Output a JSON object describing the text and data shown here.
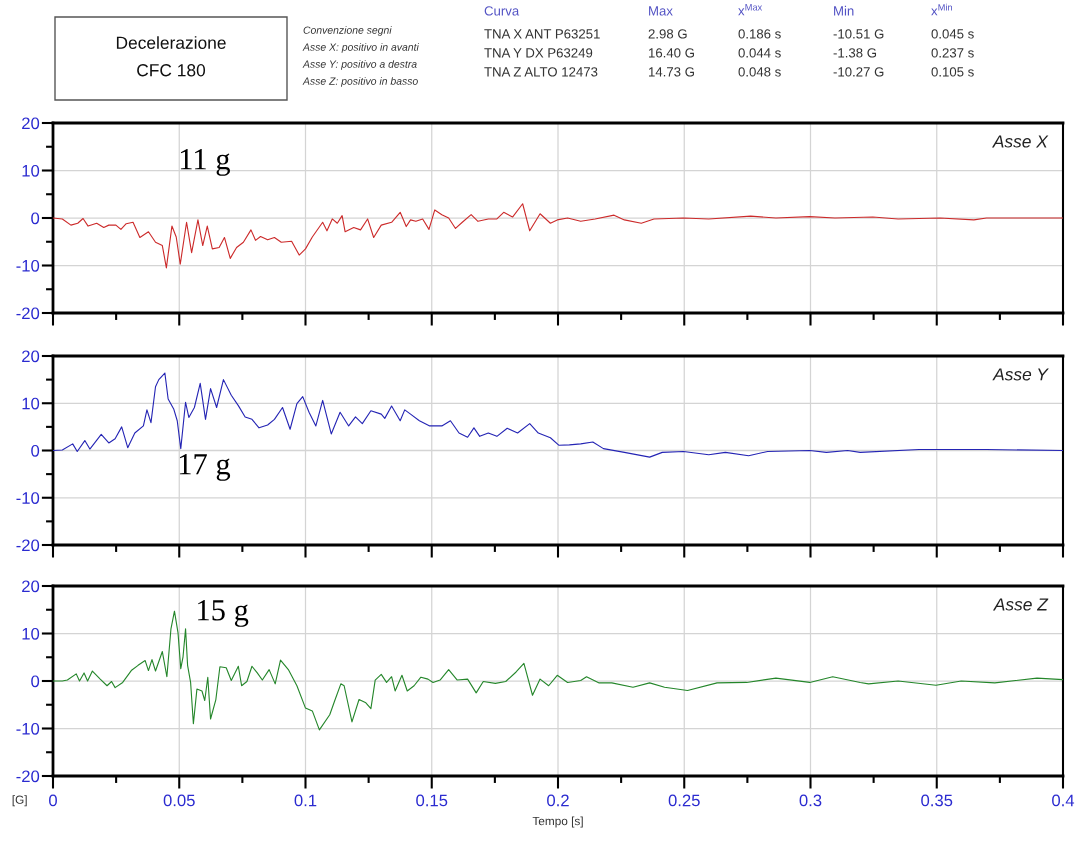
{
  "chart_data": [
    {
      "type": "other",
      "title": "Decelerazione\nCFC 180",
      "annotations": [
        "Convenzione segni\nAsse X: positivo in avanti\nAsse Y: positivo a destra\nAsse Z: positivo in basso",
        "Curva",
        "Max",
        "x$^{Max}$",
        "Min",
        "x$^{Min}$",
        "TNA X ANT P63251",
        "2.98 G",
        "0.186 s",
        "-10.51 G",
        "0.045 s",
        "TNA Y DX P63249",
        "16.40 G",
        "0.044 s",
        "-1.38 G",
        "0.237 s",
        "TNA Z ALTO 12473",
        "14.73 G",
        "0.048 s",
        "-10.27 G",
        "0.105 s"
      ]
    },
    {
      "type": "line",
      "title": "Asse X",
      "tick_labels": "y",
      "grid": true,
      "xlim": [
        0,
        0.4
      ],
      "ylim": [
        -20,
        20
      ],
      "xticks": [
        0,
        {
          "value": 0.025,
          "label": null
        },
        0.05,
        {
          "value": 0.075,
          "label": null
        },
        0.1,
        {
          "value": 0.125,
          "label": null
        },
        0.15,
        {
          "value": 0.175,
          "label": null
        },
        0.2,
        {
          "value": 0.225,
          "label": null
        },
        0.25,
        {
          "value": 0.275,
          "label": null
        },
        0.3,
        {
          "value": 0.325,
          "label": null
        },
        0.35,
        {
          "value": 0.375,
          "label": null
        },
        0.4
      ],
      "yticks": [
        -20,
        {
          "value": -15,
          "label": null
        },
        -10,
        {
          "value": -5,
          "label": null
        },
        0,
        {
          "value": 5,
          "label": null
        },
        10,
        {
          "value": 15,
          "label": null
        },
        20
      ],
      "annotations": [
        "11 g"
      ],
      "series": [
        {
          "color": "#cc2a2a",
          "x": [
            0,
            0.0037,
            0.0071,
            0.0098,
            0.0119,
            0.0139,
            0.0173,
            0.0201,
            0.0221,
            0.0249,
            0.0269,
            0.029,
            0.0317,
            0.0344,
            0.0378,
            0.0406,
            0.0433,
            0.0449,
            0.0471,
            0.0488,
            0.0504,
            0.0529,
            0.0549,
            0.0574,
            0.0593,
            0.0611,
            0.0631,
            0.0658,
            0.0679,
            0.0702,
            0.0727,
            0.0754,
            0.0784,
            0.0802,
            0.0822,
            0.085,
            0.0877,
            0.0904,
            0.0945,
            0.0975,
            0.1,
            0.1027,
            0.1068,
            0.1085,
            0.1106,
            0.1126,
            0.1145,
            0.1157,
            0.1191,
            0.1218,
            0.1246,
            0.127,
            0.13,
            0.1341,
            0.1375,
            0.1399,
            0.1416,
            0.1437,
            0.1464,
            0.1489,
            0.1512,
            0.154,
            0.1567,
            0.1594,
            0.1621,
            0.1656,
            0.1683,
            0.1724,
            0.1758,
            0.1785,
            0.182,
            0.186,
            0.1888,
            0.1929,
            0.197,
            0.1997,
            0.2038,
            0.209,
            0.2147,
            0.2222,
            0.2263,
            0.233,
            0.238,
            0.2497,
            0.2597,
            0.2763,
            0.2863,
            0.2997,
            0.3097,
            0.3247,
            0.3347,
            0.3513,
            0.3647,
            0.3697,
            0.3797,
            0.4
          ],
          "values": [
            0,
            -0.2,
            -1.5,
            -1.1,
            -0.1,
            -1.7,
            -1.1,
            -2.0,
            -1.5,
            -1.5,
            -2.4,
            -1.2,
            -0.9,
            -4.1,
            -2.9,
            -5.1,
            -5.8,
            -10.5,
            -1.7,
            -4.0,
            -9.7,
            -0.9,
            -7.3,
            -0.4,
            -5.8,
            -1.7,
            -6.5,
            -6.2,
            -4.1,
            -8.5,
            -6.2,
            -5.1,
            -2.5,
            -4.7,
            -3.9,
            -4.6,
            -4.1,
            -5.1,
            -4.9,
            -7.8,
            -6.5,
            -4.0,
            -0.9,
            -2.7,
            -0.2,
            -1.1,
            0.5,
            -2.9,
            -2.0,
            -2.5,
            -0.2,
            -4.1,
            -1.5,
            -0.9,
            1.2,
            -1.8,
            -0.4,
            -0.7,
            -0.2,
            -2.4,
            1.7,
            0.7,
            0.0,
            -2.2,
            -0.9,
            0.7,
            -0.7,
            -0.2,
            -0.2,
            1.2,
            0.2,
            3.0,
            -2.7,
            0.9,
            -1.1,
            -0.4,
            0.0,
            -0.7,
            -0.2,
            0.6,
            -0.4,
            -1.1,
            -0.2,
            0,
            -0.2,
            0.4,
            0,
            0.3,
            0,
            0.2,
            -0.2,
            0,
            -0.4,
            0,
            0,
            0
          ]
        }
      ]
    },
    {
      "type": "line",
      "title": "Asse Y",
      "tick_labels": "y",
      "grid": true,
      "xlim": [
        0,
        0.4
      ],
      "ylim": [
        -20,
        20
      ],
      "xticks": [
        0,
        {
          "value": 0.025,
          "label": null
        },
        0.05,
        {
          "value": 0.075,
          "label": null
        },
        0.1,
        {
          "value": 0.125,
          "label": null
        },
        0.15,
        {
          "value": 0.175,
          "label": null
        },
        0.2,
        {
          "value": 0.225,
          "label": null
        },
        0.25,
        {
          "value": 0.275,
          "label": null
        },
        0.3,
        {
          "value": 0.325,
          "label": null
        },
        0.35,
        {
          "value": 0.375,
          "label": null
        },
        0.4
      ],
      "yticks": [
        -20,
        {
          "value": -15,
          "label": null
        },
        -10,
        {
          "value": -5,
          "label": null
        },
        0,
        {
          "value": 5,
          "label": null
        },
        10,
        {
          "value": 15,
          "label": null
        },
        20
      ],
      "annotations": [
        "17 g"
      ],
      "series": [
        {
          "color": "#2424b4",
          "x": [
            0,
            0.0037,
            0.0078,
            0.0096,
            0.0126,
            0.0146,
            0.0191,
            0.0221,
            0.0246,
            0.0272,
            0.0296,
            0.0324,
            0.0358,
            0.0372,
            0.0388,
            0.0406,
            0.0419,
            0.0443,
            0.0456,
            0.0478,
            0.0492,
            0.0506,
            0.0525,
            0.0538,
            0.056,
            0.0583,
            0.0604,
            0.0624,
            0.0648,
            0.0675,
            0.0706,
            0.0734,
            0.0761,
            0.0788,
            0.0816,
            0.085,
            0.0877,
            0.0909,
            0.0939,
            0.0966,
            0.0989,
            0.1014,
            0.1041,
            0.1068,
            0.1102,
            0.1137,
            0.1171,
            0.1198,
            0.1225,
            0.1259,
            0.13,
            0.1314,
            0.1341,
            0.1375,
            0.1393,
            0.1416,
            0.1451,
            0.1492,
            0.154,
            0.1574,
            0.1608,
            0.1642,
            0.1667,
            0.169,
            0.1724,
            0.1758,
            0.1799,
            0.184,
            0.1888,
            0.1922,
            0.197,
            0.2004,
            0.2045,
            0.209,
            0.2138,
            0.218,
            0.2263,
            0.2363,
            0.2413,
            0.2497,
            0.2597,
            0.2663,
            0.2755,
            0.283,
            0.2997,
            0.3063,
            0.3147,
            0.3197,
            0.343,
            0.3697,
            0.4
          ],
          "values": [
            0,
            0.1,
            1.4,
            -0.2,
            2.1,
            0.3,
            3.4,
            1.6,
            2.5,
            5.0,
            0.6,
            3.7,
            5.2,
            8.6,
            5.9,
            13.5,
            15.0,
            16.4,
            10.9,
            8.8,
            6.3,
            0.4,
            10.2,
            7.0,
            9.1,
            14.2,
            6.6,
            13.1,
            9.1,
            15.0,
            11.7,
            9.5,
            7.1,
            6.6,
            4.8,
            5.4,
            6.6,
            9.1,
            4.5,
            9.9,
            11.4,
            8.1,
            5.2,
            10.6,
            3.5,
            8.1,
            5.2,
            7.1,
            5.7,
            8.4,
            7.7,
            6.8,
            9.4,
            6.3,
            8.6,
            7.7,
            6.3,
            5.2,
            5.2,
            6.3,
            3.7,
            2.8,
            4.8,
            3.0,
            3.7,
            3.0,
            4.7,
            3.7,
            5.7,
            3.7,
            2.7,
            1.1,
            1.2,
            1.4,
            1.8,
            0.4,
            -0.4,
            -1.4,
            -0.4,
            -0.2,
            -0.9,
            -0.4,
            -1.1,
            -0.2,
            0,
            -0.4,
            0,
            -0.4,
            0.2,
            0.2,
            0
          ]
        }
      ]
    },
    {
      "type": "line",
      "title": "Asse Z",
      "xlabel": "Tempo [s]",
      "ylabel": "[G]",
      "grid": true,
      "xlim": [
        0,
        0.4
      ],
      "ylim": [
        -20,
        20
      ],
      "xticks": [
        0,
        {
          "value": 0.025,
          "label": null
        },
        0.05,
        {
          "value": 0.075,
          "label": null
        },
        0.1,
        {
          "value": 0.125,
          "label": null
        },
        0.15,
        {
          "value": 0.175,
          "label": null
        },
        0.2,
        {
          "value": 0.225,
          "label": null
        },
        0.25,
        {
          "value": 0.275,
          "label": null
        },
        0.3,
        {
          "value": 0.325,
          "label": null
        },
        0.35,
        {
          "value": 0.375,
          "label": null
        },
        0.4
      ],
      "yticks": [
        -20,
        {
          "value": -15,
          "label": null
        },
        -10,
        {
          "value": -5,
          "label": null
        },
        0,
        {
          "value": 5,
          "label": null
        },
        10,
        {
          "value": 15,
          "label": null
        },
        20
      ],
      "annotations": [
        "15 g"
      ],
      "series": [
        {
          "color": "#24862a",
          "x": [
            0,
            0.0037,
            0.0057,
            0.0092,
            0.0105,
            0.0123,
            0.0137,
            0.0156,
            0.0187,
            0.0214,
            0.0232,
            0.0246,
            0.0276,
            0.031,
            0.0337,
            0.0365,
            0.0378,
            0.0392,
            0.0406,
            0.0433,
            0.0451,
            0.0467,
            0.0481,
            0.0495,
            0.0506,
            0.0515,
            0.0525,
            0.0533,
            0.0545,
            0.0556,
            0.057,
            0.059,
            0.0601,
            0.0613,
            0.0624,
            0.0645,
            0.0661,
            0.0686,
            0.0706,
            0.0734,
            0.0747,
            0.0768,
            0.0788,
            0.0809,
            0.0829,
            0.0856,
            0.088,
            0.0901,
            0.0932,
            0.0966,
            0.1,
            0.1027,
            0.1055,
            0.1096,
            0.1116,
            0.114,
            0.1153,
            0.1184,
            0.1212,
            0.1239,
            0.1259,
            0.1276,
            0.13,
            0.1321,
            0.1341,
            0.1355,
            0.1382,
            0.1403,
            0.143,
            0.1457,
            0.1485,
            0.1505,
            0.1533,
            0.1567,
            0.1601,
            0.1642,
            0.1676,
            0.1704,
            0.1752,
            0.1793,
            0.1834,
            0.1865,
            0.1899,
            0.1929,
            0.1963,
            0.1997,
            0.2038,
            0.209,
            0.2113,
            0.2163,
            0.2213,
            0.2297,
            0.2363,
            0.2422,
            0.2513,
            0.263,
            0.2747,
            0.2863,
            0.2997,
            0.3088,
            0.3197,
            0.323,
            0.3347,
            0.3497,
            0.3597,
            0.373,
            0.3897,
            0.4
          ],
          "values": [
            0,
            0,
            0.2,
            1.5,
            0,
            1.7,
            0,
            2.1,
            0.4,
            -1.0,
            -0.1,
            -1.4,
            -0.3,
            2.2,
            3.3,
            4.3,
            2.2,
            4.5,
            2.1,
            6.2,
            0.9,
            10.9,
            14.7,
            10.2,
            2.6,
            5.1,
            11.0,
            3.3,
            -0.3,
            -9.0,
            -1.7,
            -2.1,
            -4.1,
            0.8,
            -8.0,
            -3.9,
            3.0,
            2.8,
            0.1,
            3.1,
            -1.0,
            -0.1,
            3.1,
            1.7,
            0.2,
            2.4,
            -0.6,
            4.4,
            2.4,
            -1.0,
            -5.7,
            -6.3,
            -10.3,
            -7.1,
            -4.1,
            -0.6,
            -1.0,
            -8.6,
            -3.9,
            -4.6,
            -5.8,
            0.2,
            1.4,
            -0.3,
            0.9,
            -2.1,
            1.2,
            -2.1,
            -1.0,
            0.8,
            0.4,
            -0.3,
            0.2,
            2.4,
            0.2,
            0.4,
            -2.5,
            -0.1,
            -0.5,
            -0.1,
            1.9,
            3.7,
            -3.0,
            0.4,
            -1.0,
            1.2,
            -0.3,
            0.1,
            0.9,
            -0.4,
            -0.4,
            -1.3,
            -0.4,
            -1.3,
            -2.0,
            -0.4,
            -0.3,
            0.6,
            -0.3,
            0.9,
            -0.3,
            -0.6,
            0,
            -0.9,
            0,
            -0.4,
            0.6,
            0.3
          ]
        }
      ]
    }
  ]
}
